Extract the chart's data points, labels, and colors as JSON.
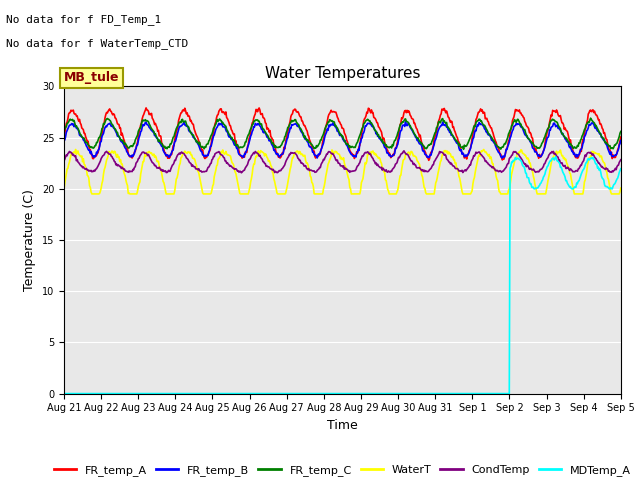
{
  "title": "Water Temperatures",
  "xlabel": "Time",
  "ylabel": "Temperature (C)",
  "ylim": [
    0,
    30
  ],
  "yticks": [
    0,
    5,
    10,
    15,
    20,
    25,
    30
  ],
  "background_color": "#e8e8e8",
  "annotations": [
    "No data for f FD_Temp_1",
    "No data for f WaterTemp_CTD"
  ],
  "text_box": "MB_tule",
  "x_tick_labels": [
    "Aug 21",
    "Aug 22",
    "Aug 23",
    "Aug 24",
    "Aug 25",
    "Aug 26",
    "Aug 27",
    "Aug 28",
    "Aug 29",
    "Aug 30",
    "Aug 31",
    "Sep 1",
    "Sep 2",
    "Sep 3",
    "Sep 4",
    "Sep 5"
  ],
  "legend_labels": [
    "FR_temp_A",
    "FR_temp_B",
    "FR_temp_C",
    "WaterT",
    "CondTemp",
    "MDTemp_A"
  ],
  "legend_colors": [
    "red",
    "blue",
    "green",
    "yellow",
    "purple",
    "cyan"
  ],
  "series_colors": [
    "red",
    "blue",
    "green",
    "yellow",
    "purple",
    "cyan"
  ],
  "line_width": 1.2,
  "title_fontsize": 11,
  "tick_fontsize": 7,
  "label_fontsize": 9,
  "legend_fontsize": 8
}
